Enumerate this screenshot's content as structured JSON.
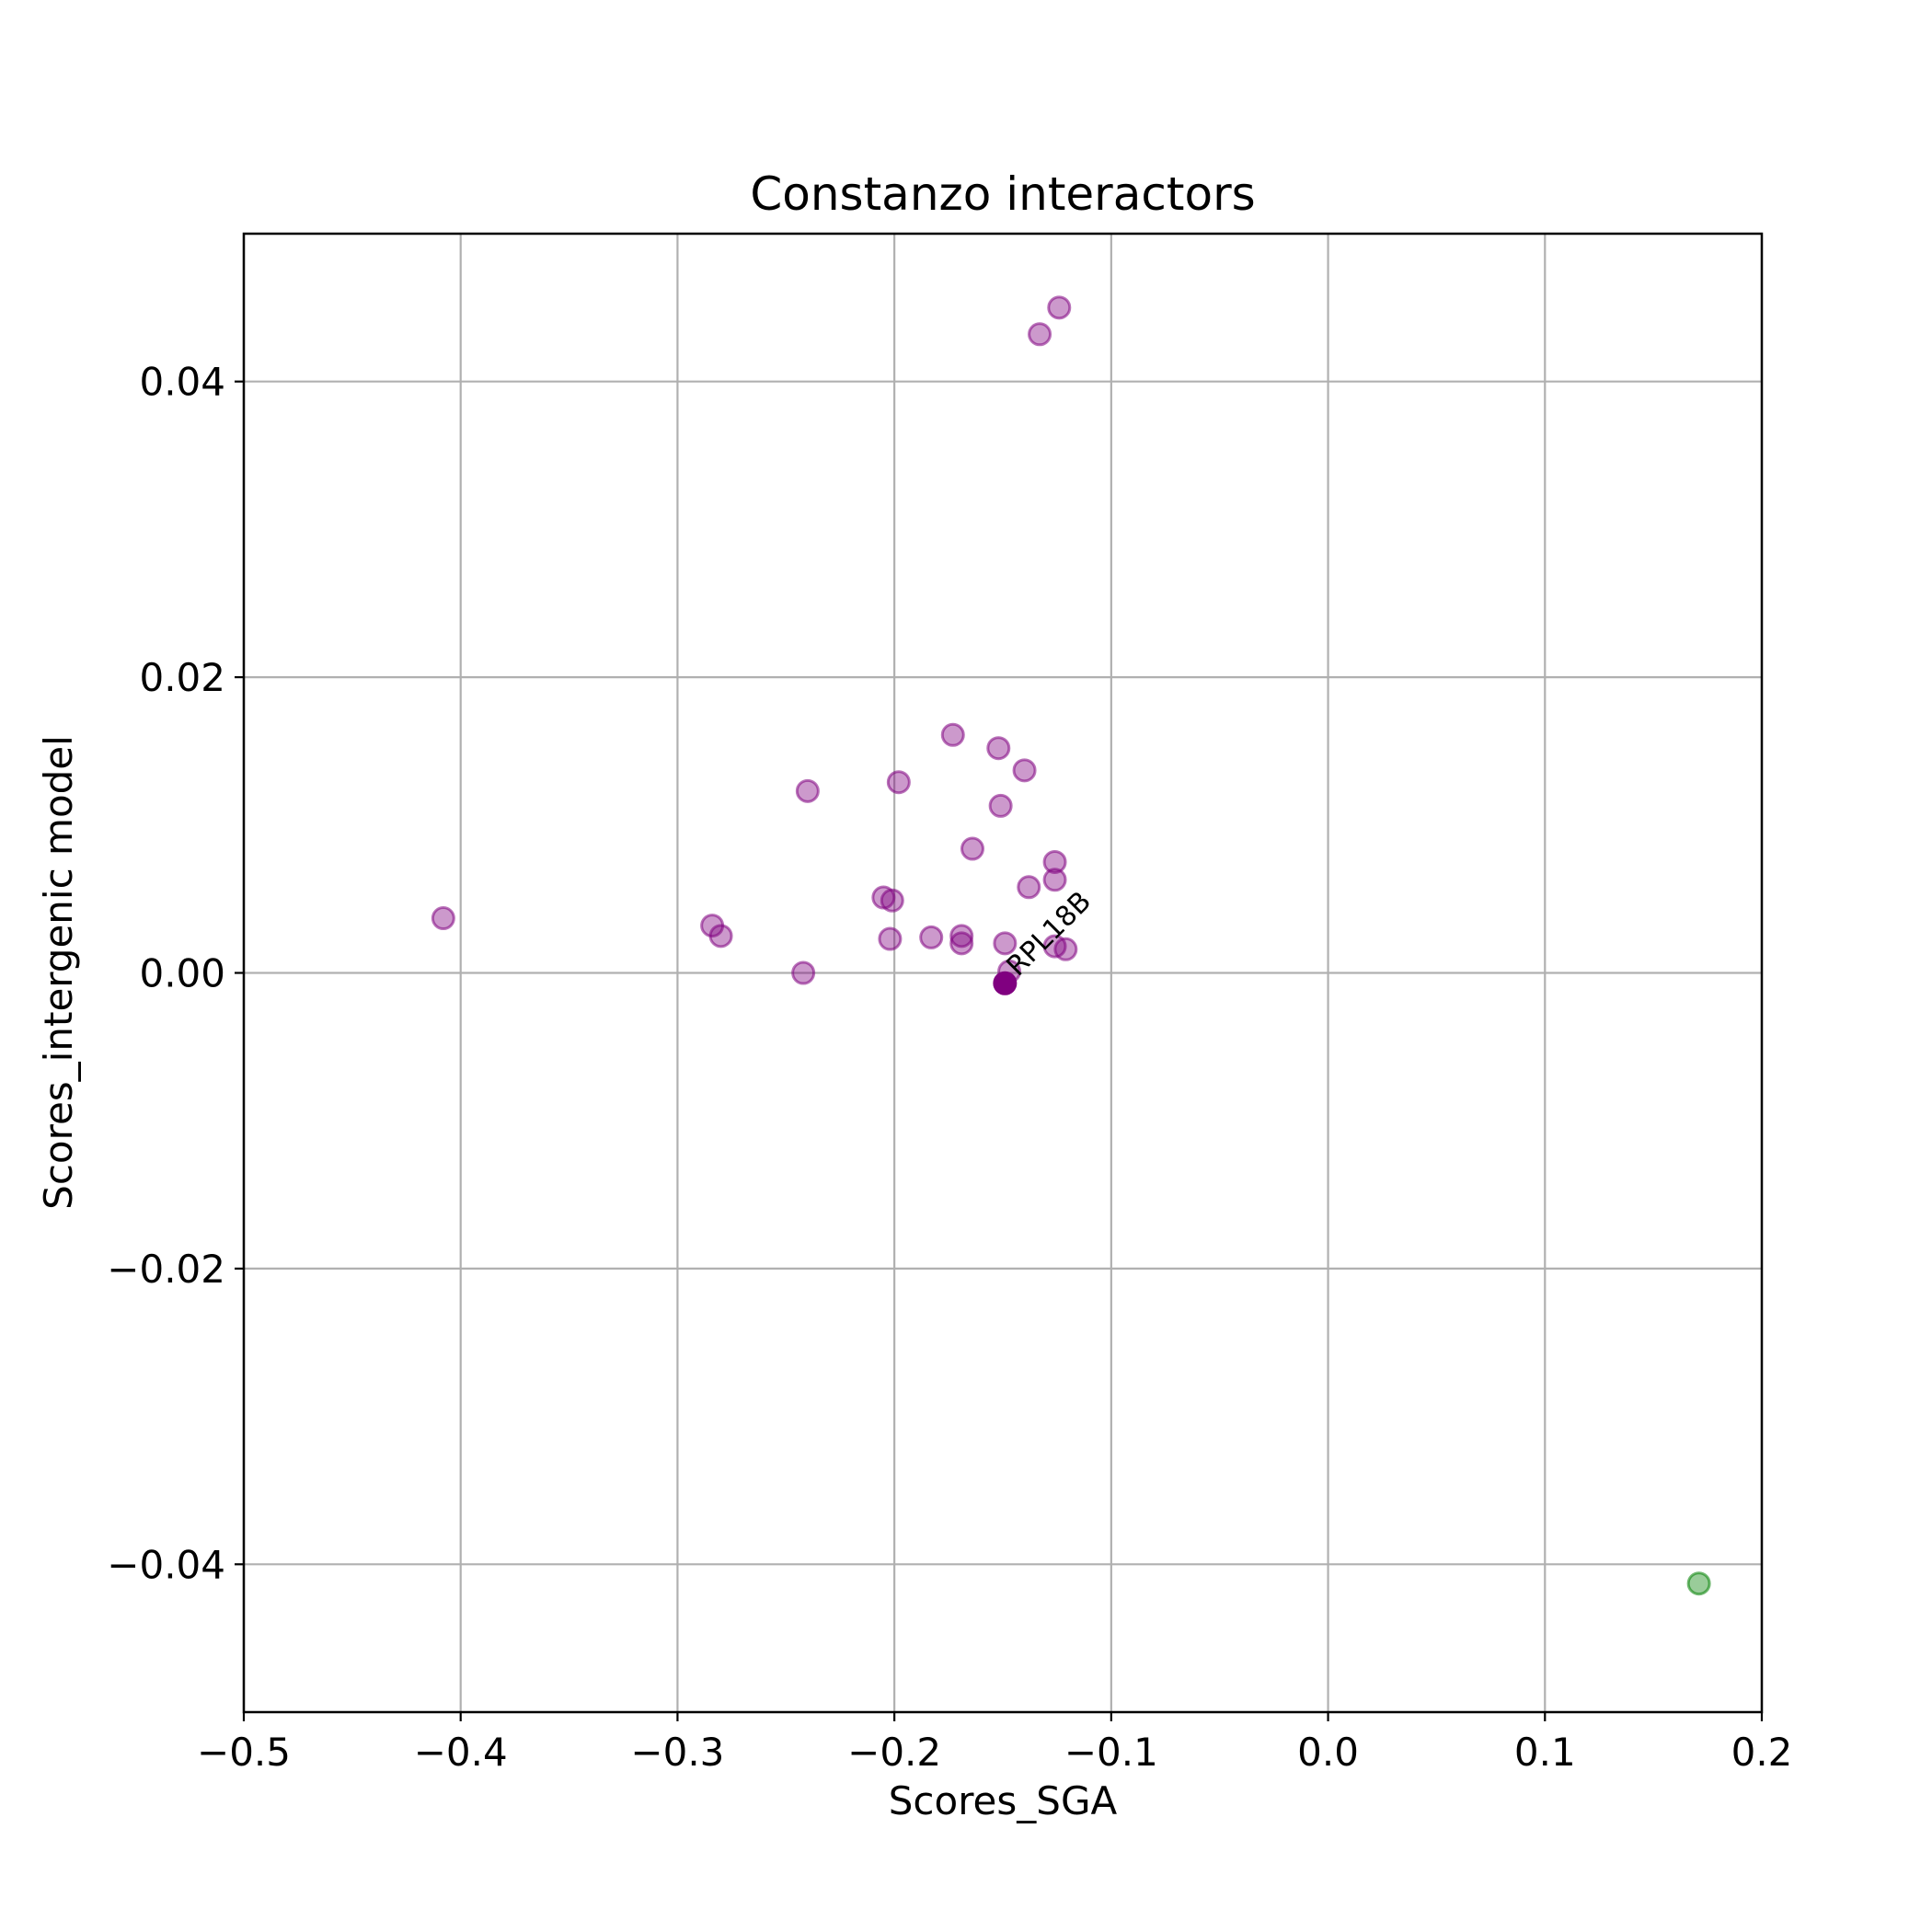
{
  "chart_data": {
    "type": "scatter",
    "title": "Constanzo interactors",
    "xlabel": "Scores_SGA",
    "ylabel": "Scores_intergenic model",
    "xlim": [
      -0.5,
      0.2
    ],
    "ylim": [
      -0.05,
      0.05
    ],
    "x_ticks": [
      {
        "value": -0.5,
        "label": "−0.5"
      },
      {
        "value": -0.4,
        "label": "−0.4"
      },
      {
        "value": -0.3,
        "label": "−0.3"
      },
      {
        "value": -0.2,
        "label": "−0.2"
      },
      {
        "value": -0.1,
        "label": "−0.1"
      },
      {
        "value": 0.0,
        "label": "0.0"
      },
      {
        "value": 0.1,
        "label": "0.1"
      },
      {
        "value": 0.2,
        "label": "0.2"
      }
    ],
    "y_ticks": [
      {
        "value": -0.04,
        "label": "−0.04"
      },
      {
        "value": -0.02,
        "label": "−0.02"
      },
      {
        "value": 0.0,
        "label": "0.00"
      },
      {
        "value": 0.02,
        "label": "0.02"
      },
      {
        "value": 0.04,
        "label": "0.04"
      }
    ],
    "grid": true,
    "series": [
      {
        "color": "#800080",
        "opacity": 0.4,
        "points": [
          {
            "x": -0.408,
            "y": 0.0037
          },
          {
            "x": -0.284,
            "y": 0.0032
          },
          {
            "x": -0.28,
            "y": 0.0025
          },
          {
            "x": -0.242,
            "y": 0.0
          },
          {
            "x": -0.24,
            "y": 0.0123
          },
          {
            "x": -0.205,
            "y": 0.0051
          },
          {
            "x": -0.201,
            "y": 0.0049
          },
          {
            "x": -0.202,
            "y": 0.0023
          },
          {
            "x": -0.198,
            "y": 0.0129
          },
          {
            "x": -0.183,
            "y": 0.0024
          },
          {
            "x": -0.173,
            "y": 0.0161
          },
          {
            "x": -0.169,
            "y": 0.0025
          },
          {
            "x": -0.169,
            "y": 0.002
          },
          {
            "x": -0.164,
            "y": 0.0084
          },
          {
            "x": -0.152,
            "y": 0.0152
          },
          {
            "x": -0.151,
            "y": 0.0113
          },
          {
            "x": -0.149,
            "y": 0.002
          },
          {
            "x": -0.147,
            "y": 0.0001
          },
          {
            "x": -0.14,
            "y": 0.0137
          },
          {
            "x": -0.138,
            "y": 0.0058
          },
          {
            "x": -0.133,
            "y": 0.0432
          },
          {
            "x": -0.126,
            "y": 0.0075
          },
          {
            "x": -0.126,
            "y": 0.0063
          },
          {
            "x": -0.126,
            "y": 0.0018
          },
          {
            "x": -0.124,
            "y": 0.045
          },
          {
            "x": -0.121,
            "y": 0.0016
          }
        ]
      },
      {
        "color": "#008000",
        "opacity": 0.4,
        "points": [
          {
            "x": 0.171,
            "y": -0.0413
          }
        ]
      },
      {
        "color": "#800080",
        "opacity": 1.0,
        "points": [
          {
            "x": -0.149,
            "y": -0.0007
          }
        ]
      }
    ],
    "annotations": [
      {
        "text": "RPL18B",
        "x": -0.143,
        "y": -0.0003,
        "rotation": 45
      }
    ]
  }
}
